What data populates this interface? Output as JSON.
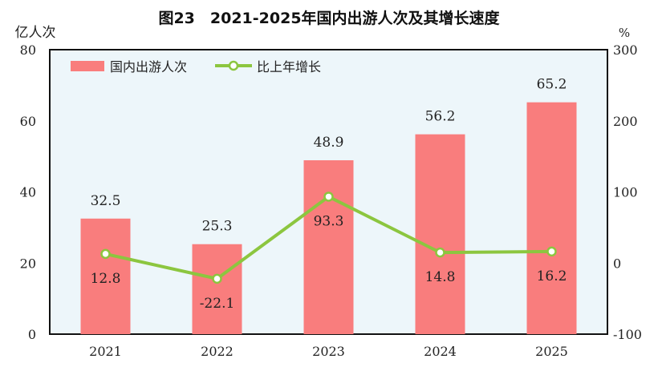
{
  "chart_data": {
    "type": "bar+line",
    "title": "图23　2021-2025年国内出游人次及其增长速度",
    "categories": [
      "2021",
      "2022",
      "2023",
      "2024",
      "2025"
    ],
    "left_axis": {
      "unit": "亿人次",
      "range": [
        0,
        80
      ],
      "ticks": [
        0,
        20,
        40,
        60,
        80
      ]
    },
    "right_axis": {
      "unit": "%",
      "range": [
        -100,
        300
      ],
      "ticks": [
        -100,
        0,
        100,
        200,
        300
      ]
    },
    "series": [
      {
        "name": "国内出游人次",
        "type": "bar",
        "axis": "left",
        "color": "#f97d7d",
        "values": [
          32.5,
          25.3,
          48.9,
          56.2,
          65.2
        ]
      },
      {
        "name": "比上年增长",
        "type": "line",
        "axis": "right",
        "color": "#8cc63f",
        "values": [
          12.8,
          -22.1,
          93.3,
          14.8,
          16.2
        ]
      }
    ],
    "legend": "top-left",
    "background": "#edf6fa",
    "grid": false
  }
}
